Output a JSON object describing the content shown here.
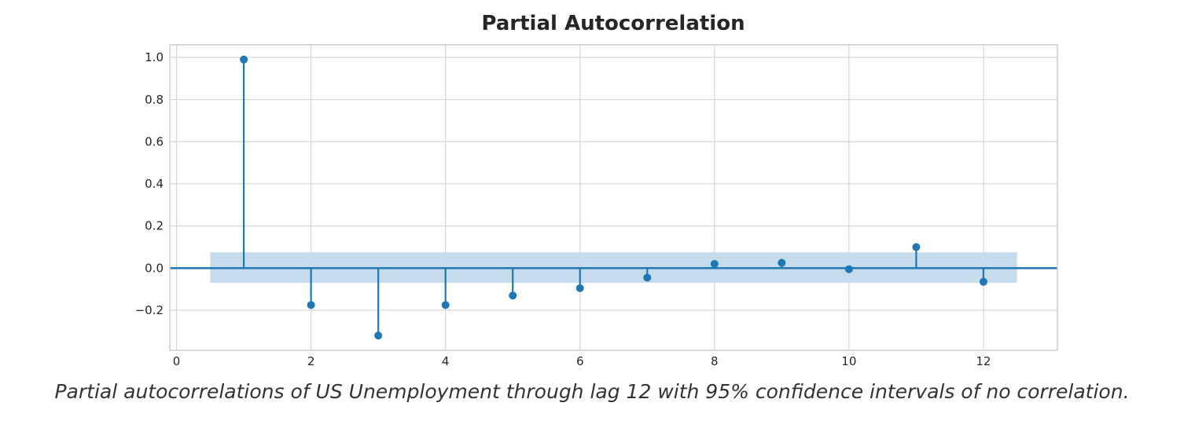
{
  "chart_data": {
    "type": "stem",
    "title": "Partial Autocorrelation",
    "xlabel": "",
    "ylabel": "",
    "x": [
      1,
      2,
      3,
      4,
      5,
      6,
      7,
      8,
      9,
      10,
      11,
      12
    ],
    "values": [
      0.99,
      -0.175,
      -0.32,
      -0.175,
      -0.13,
      -0.095,
      -0.045,
      0.02,
      0.025,
      -0.005,
      0.1,
      -0.065
    ],
    "confidence_interval": {
      "lower": -0.07,
      "upper": 0.075,
      "x_start": 0.5,
      "x_end": 12.5
    },
    "xlim": [
      -0.1,
      13.1
    ],
    "ylim": [
      -0.39,
      1.06
    ],
    "xticks": [
      0,
      2,
      4,
      6,
      8,
      10,
      12
    ],
    "xtick_labels": [
      "0",
      "2",
      "4",
      "6",
      "8",
      "10",
      "12"
    ],
    "yticks": [
      1.0,
      0.8,
      0.6,
      0.4,
      0.2,
      0.0,
      -0.2
    ],
    "ytick_labels": [
      "1.0",
      "0.8",
      "0.6",
      "0.4",
      "0.2",
      "0.0",
      "−0.2"
    ],
    "grid": true,
    "colors": {
      "stem": "#1f77b4",
      "band": "#c6dcec",
      "grid": "#d5d5d5",
      "frame": "#cccccc",
      "text": "#262626"
    }
  },
  "caption": "Partial autocorrelations of US Unemployment through lag 12 with 95% confidence intervals of no correlation."
}
